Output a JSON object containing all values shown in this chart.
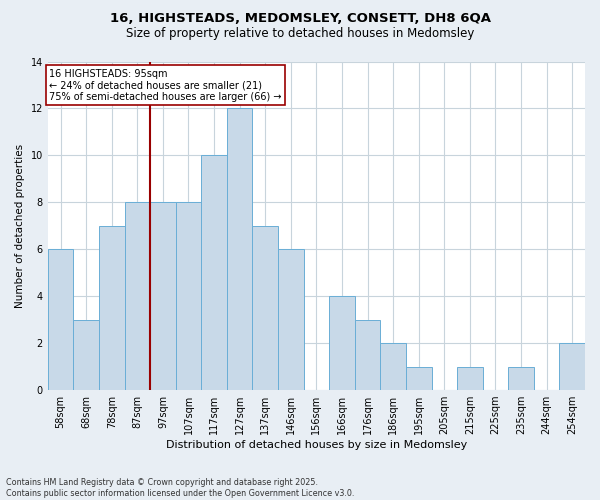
{
  "title1": "16, HIGHSTEADS, MEDOMSLEY, CONSETT, DH8 6QA",
  "title2": "Size of property relative to detached houses in Medomsley",
  "xlabel": "Distribution of detached houses by size in Medomsley",
  "ylabel": "Number of detached properties",
  "bar_labels": [
    "58sqm",
    "68sqm",
    "78sqm",
    "87sqm",
    "97sqm",
    "107sqm",
    "117sqm",
    "127sqm",
    "137sqm",
    "146sqm",
    "156sqm",
    "166sqm",
    "176sqm",
    "186sqm",
    "195sqm",
    "205sqm",
    "215sqm",
    "225sqm",
    "235sqm",
    "244sqm",
    "254sqm"
  ],
  "bar_values": [
    6,
    3,
    7,
    8,
    8,
    8,
    10,
    12,
    7,
    6,
    0,
    4,
    3,
    2,
    1,
    0,
    1,
    0,
    1,
    0,
    2
  ],
  "bar_color": "#c8d9e8",
  "bar_edgecolor": "#6aaed6",
  "bar_linewidth": 0.7,
  "vline_x_index": 3.5,
  "vline_color": "#990000",
  "vline_linewidth": 1.5,
  "annotation_text": "16 HIGHSTEADS: 95sqm\n← 24% of detached houses are smaller (21)\n75% of semi-detached houses are larger (66) →",
  "annotation_box_edgecolor": "#990000",
  "annotation_box_facecolor": "white",
  "ylim": [
    0,
    14
  ],
  "yticks": [
    0,
    2,
    4,
    6,
    8,
    10,
    12,
    14
  ],
  "grid_color": "#c8d4dc",
  "footnote": "Contains HM Land Registry data © Crown copyright and database right 2025.\nContains public sector information licensed under the Open Government Licence v3.0.",
  "bg_color": "#e8eef4",
  "plot_bg_color": "#ffffff",
  "title1_fontsize": 9.5,
  "title2_fontsize": 8.5,
  "xlabel_fontsize": 8,
  "ylabel_fontsize": 7.5,
  "tick_fontsize": 7,
  "annotation_fontsize": 7,
  "footnote_fontsize": 5.8
}
